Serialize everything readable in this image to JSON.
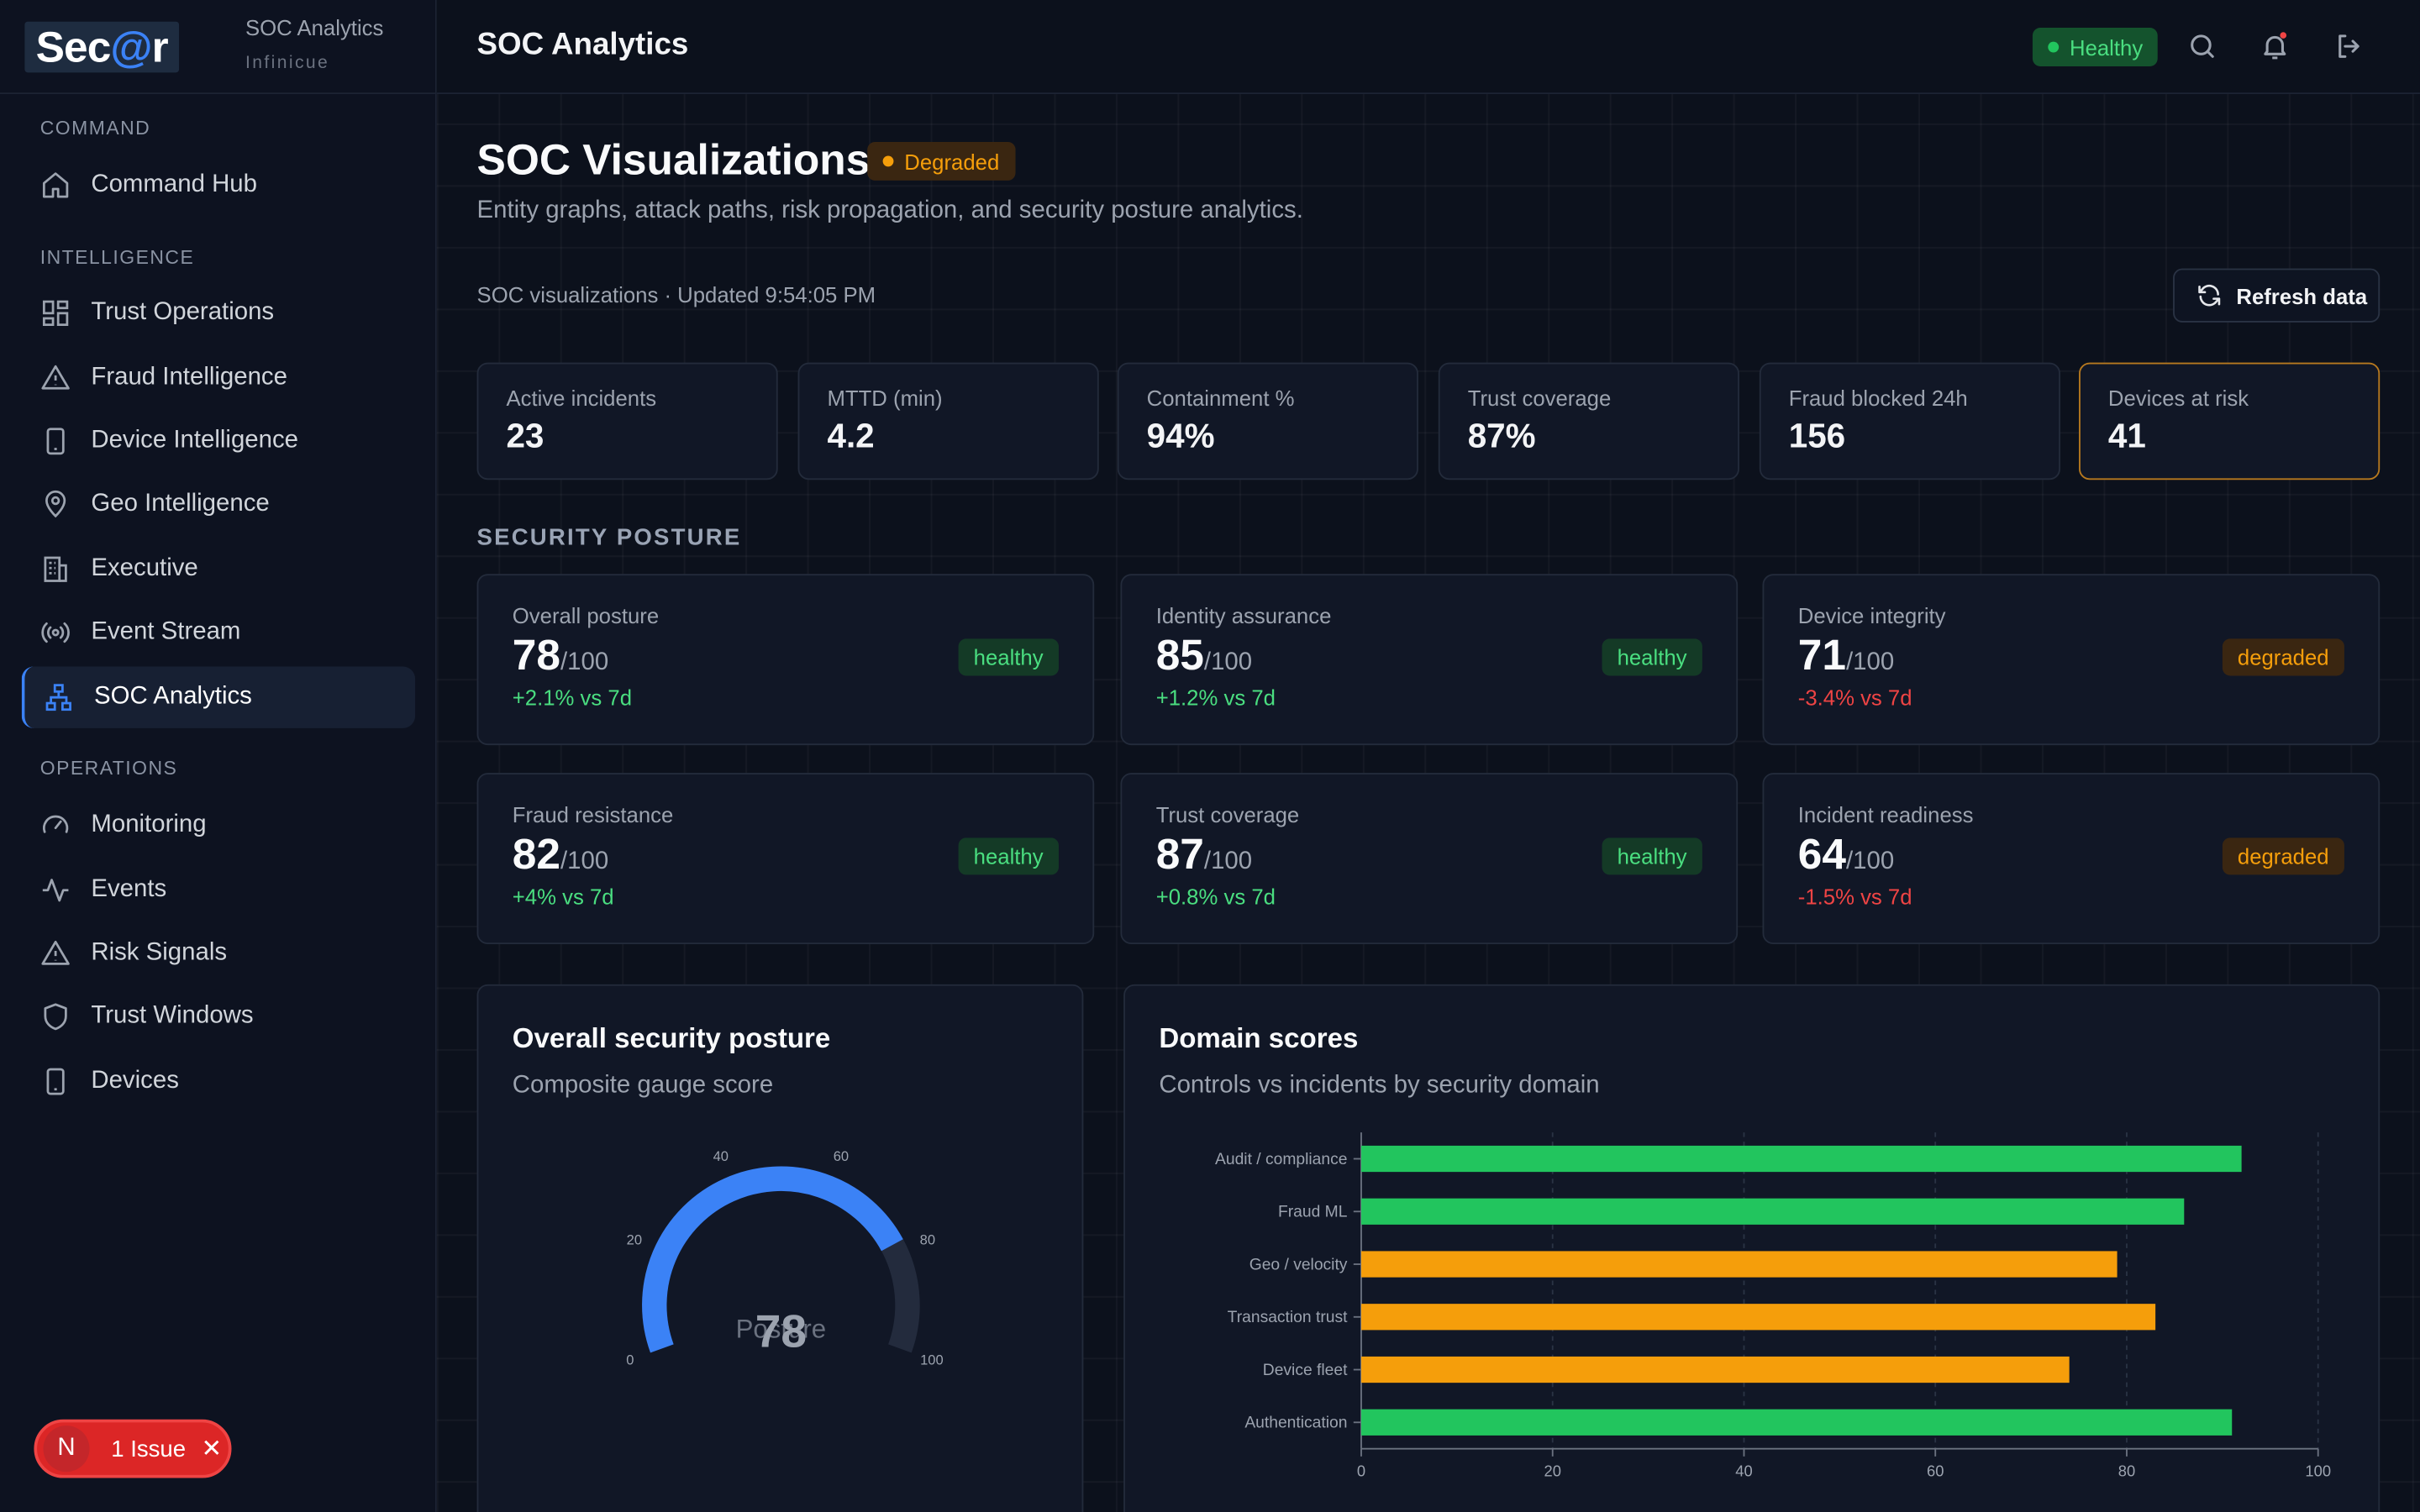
{
  "brand": {
    "logo_main": "Sec",
    "logo_at": "@",
    "logo_end": "r",
    "title": "SOC Analytics",
    "subtitle": "Infinicue"
  },
  "sidebar": {
    "sections": [
      {
        "label": "COMMAND"
      },
      {
        "label": "INTELLIGENCE"
      },
      {
        "label": "OPERATIONS"
      }
    ],
    "items": [
      {
        "label": "Command Hub",
        "icon": "home-icon"
      },
      {
        "label": "Trust Operations",
        "icon": "grid-icon"
      },
      {
        "label": "Fraud Intelligence",
        "icon": "warning-icon"
      },
      {
        "label": "Device Intelligence",
        "icon": "device-icon"
      },
      {
        "label": "Geo Intelligence",
        "icon": "map-pin-icon"
      },
      {
        "label": "Executive",
        "icon": "building-icon"
      },
      {
        "label": "Event Stream",
        "icon": "broadcast-icon"
      },
      {
        "label": "SOC Analytics",
        "icon": "network-icon",
        "active": true
      },
      {
        "label": "Monitoring",
        "icon": "gauge-icon"
      },
      {
        "label": "Events",
        "icon": "activity-icon"
      },
      {
        "label": "Risk Signals",
        "icon": "warning-icon"
      },
      {
        "label": "Trust Windows",
        "icon": "shield-icon"
      },
      {
        "label": "Devices",
        "icon": "device-icon"
      }
    ]
  },
  "issue": {
    "badge": "N",
    "label": "1 Issue",
    "close": "✕"
  },
  "topbar": {
    "title": "SOC Analytics",
    "status": "Healthy"
  },
  "page": {
    "title": "SOC Visualizations",
    "badge": "Degraded",
    "subtitle": "Entity graphs, attack paths, risk propagation, and security posture analytics.",
    "updated": "SOC visualizations · Updated 9:54:05 PM",
    "refresh_label": "Refresh data"
  },
  "kpis": [
    {
      "label": "Active incidents",
      "value": "23"
    },
    {
      "label": "MTTD (min)",
      "value": "4.2"
    },
    {
      "label": "Containment %",
      "value": "94%"
    },
    {
      "label": "Trust coverage",
      "value": "87%"
    },
    {
      "label": "Fraud blocked 24h",
      "value": "156"
    },
    {
      "label": "Devices at risk",
      "value": "41",
      "highlight": true
    }
  ],
  "posture_heading": "SECURITY POSTURE",
  "posture": [
    {
      "label": "Overall posture",
      "score": "78",
      "max": "/100",
      "delta": "+2.1% vs 7d",
      "status": "healthy",
      "trend": "up"
    },
    {
      "label": "Identity assurance",
      "score": "85",
      "max": "/100",
      "delta": "+1.2% vs 7d",
      "status": "healthy",
      "trend": "up"
    },
    {
      "label": "Device integrity",
      "score": "71",
      "max": "/100",
      "delta": "-3.4% vs 7d",
      "status": "degraded",
      "trend": "down"
    },
    {
      "label": "Fraud resistance",
      "score": "82",
      "max": "/100",
      "delta": "+4% vs 7d",
      "status": "healthy",
      "trend": "up"
    },
    {
      "label": "Trust coverage",
      "score": "87",
      "max": "/100",
      "delta": "+0.8% vs 7d",
      "status": "healthy",
      "trend": "up"
    },
    {
      "label": "Incident readiness",
      "score": "64",
      "max": "/100",
      "delta": "-1.5% vs 7d",
      "status": "degraded",
      "trend": "down"
    }
  ],
  "gauge_card": {
    "title": "Overall security posture",
    "subtitle": "Composite gauge score",
    "center_label": "Posture"
  },
  "domain_card": {
    "title": "Domain scores",
    "subtitle": "Controls vs incidents by security domain"
  },
  "colors": {
    "accent": "#3b82f6",
    "healthy": "#22c55e",
    "degraded": "#f59e0b",
    "danger": "#ef4444"
  },
  "chart_data": [
    {
      "type": "gauge",
      "value": 78,
      "range": [
        0,
        100
      ],
      "ticks": [
        0,
        20,
        40,
        60,
        80,
        100
      ],
      "label": "Posture",
      "value_text": "78"
    },
    {
      "type": "bar",
      "orientation": "horizontal",
      "categories": [
        "Audit / compliance",
        "Fraud ML",
        "Geo / velocity",
        "Transaction trust",
        "Device fleet",
        "Authentication"
      ],
      "values": [
        92,
        86,
        79,
        83,
        74,
        91
      ],
      "bar_colors": [
        "#22c55e",
        "#22c55e",
        "#f59e0b",
        "#f59e0b",
        "#f59e0b",
        "#22c55e"
      ],
      "xlim": [
        0,
        100
      ],
      "xticks": [
        0,
        20,
        40,
        60,
        80,
        100
      ],
      "grid": true
    }
  ]
}
